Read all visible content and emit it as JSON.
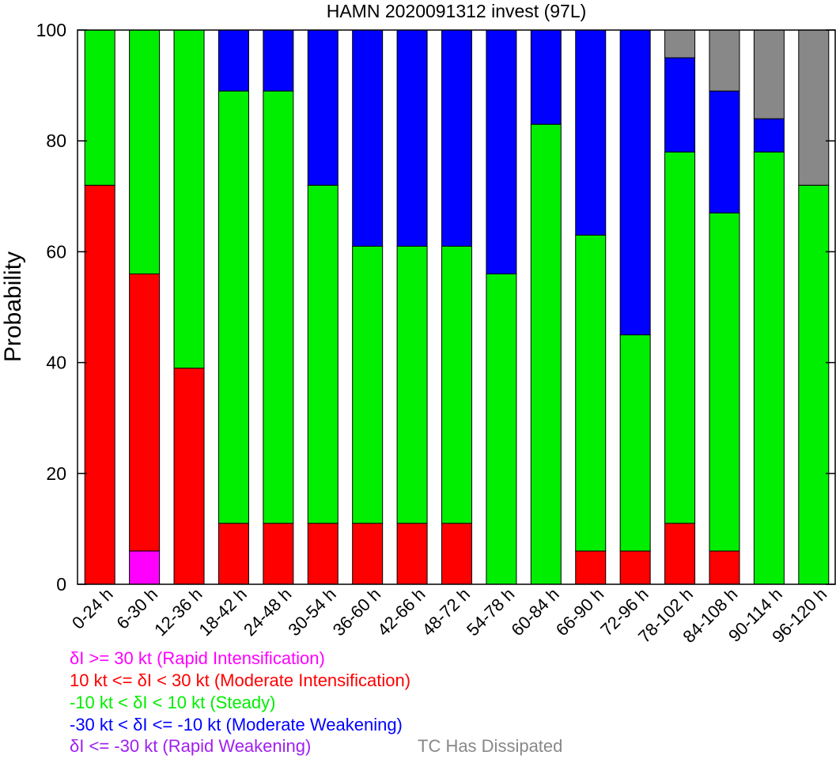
{
  "chart_data": {
    "type": "bar",
    "stacked": true,
    "title": "HAMN 2020091312 invest (97L)",
    "xlabel": "",
    "ylabel": "Probability",
    "ylim": [
      0,
      100
    ],
    "yticks": [
      "0",
      "20",
      "40",
      "60",
      "80",
      "100"
    ],
    "grid": false,
    "categories": [
      "0-24 h",
      "6-30 h",
      "12-36 h",
      "18-42 h",
      "24-48 h",
      "30-54 h",
      "36-60 h",
      "42-66 h",
      "48-72 h",
      "54-78 h",
      "60-84 h",
      "66-90 h",
      "72-96 h",
      "78-102 h",
      "84-108 h",
      "90-114 h",
      "96-120 h"
    ],
    "series": [
      {
        "name": "δI <= -30 kt (Rapid Weakening)",
        "color": "#a020f0",
        "values": [
          0,
          0,
          0,
          0,
          0,
          0,
          0,
          0,
          0,
          0,
          0,
          0,
          0,
          0,
          0,
          0,
          0
        ]
      },
      {
        "name": "δI >= 30 kt (Rapid Intensification)",
        "color": "#ff00ff",
        "values": [
          0,
          6,
          0,
          0,
          0,
          0,
          0,
          0,
          0,
          0,
          0,
          0,
          0,
          0,
          0,
          0,
          0
        ]
      },
      {
        "name": "10 kt <= δI < 30 kt (Moderate Intensification)",
        "color": "#ff0000",
        "values": [
          72,
          50,
          39,
          11,
          11,
          11,
          11,
          11,
          11,
          0,
          0,
          6,
          6,
          11,
          6,
          0,
          0
        ]
      },
      {
        "name": "-10 kt < δI < 10 kt (Steady)",
        "color": "#00ee00",
        "values": [
          28,
          44,
          61,
          78,
          78,
          61,
          50,
          50,
          50,
          56,
          83,
          57,
          39,
          67,
          61,
          78,
          72
        ]
      },
      {
        "name": "-30 kt < δI <= -10 kt (Moderate Weakening)",
        "color": "#0000ff",
        "values": [
          0,
          0,
          0,
          11,
          11,
          28,
          39,
          39,
          39,
          44,
          17,
          37,
          55,
          17,
          22,
          6,
          0
        ]
      },
      {
        "name": "TC Has Dissipated",
        "color": "#888888",
        "values": [
          0,
          0,
          0,
          0,
          0,
          0,
          0,
          0,
          0,
          0,
          0,
          0,
          0,
          5,
          11,
          16,
          28
        ]
      }
    ]
  },
  "legend": [
    {
      "text": "δI >= 30 kt (Rapid Intensification)",
      "color": "#ff00ff"
    },
    {
      "text": "10 kt <= δI < 30 kt (Moderate Intensification)",
      "color": "#ff0000"
    },
    {
      "text": "-10 kt < δI < 10 kt (Steady)",
      "color": "#00ee00"
    },
    {
      "text": "-30 kt < δI <= -10 kt (Moderate Weakening)",
      "color": "#0000ff"
    },
    {
      "text": "δI <= -30 kt (Rapid Weakening)",
      "color": "#a020f0"
    },
    {
      "text": "TC Has Dissipated",
      "color": "#888888"
    }
  ]
}
